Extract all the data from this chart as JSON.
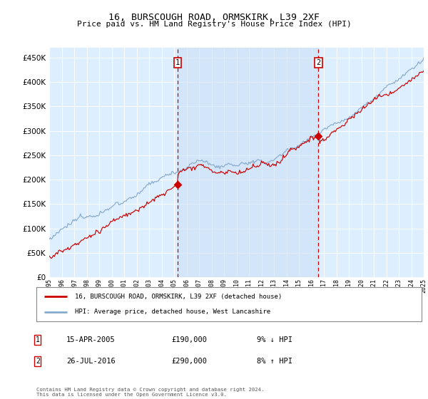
{
  "title": "16, BURSCOUGH ROAD, ORMSKIRK, L39 2XF",
  "subtitle": "Price paid vs. HM Land Registry's House Price Index (HPI)",
  "legend_line1": "16, BURSCOUGH ROAD, ORMSKIRK, L39 2XF (detached house)",
  "legend_line2": "HPI: Average price, detached house, West Lancashire",
  "footnote": "Contains HM Land Registry data © Crown copyright and database right 2024.\nThis data is licensed under the Open Government Licence v3.0.",
  "sale1_date": "15-APR-2005",
  "sale1_price": "£190,000",
  "sale1_hpi": "9% ↓ HPI",
  "sale2_date": "26-JUL-2016",
  "sale2_price": "£290,000",
  "sale2_hpi": "8% ↑ HPI",
  "red_color": "#cc0000",
  "blue_color": "#88aacc",
  "bg_color": "#ddeeff",
  "shade_color": "#cce0f5",
  "vline_color": "#cc0000",
  "ylim": [
    0,
    470000
  ],
  "yticks": [
    0,
    50000,
    100000,
    150000,
    200000,
    250000,
    300000,
    350000,
    400000,
    450000
  ],
  "sale1_x": 2005.29,
  "sale1_y": 190000,
  "sale2_x": 2016.57,
  "sale2_y": 290000,
  "xmin": 1995,
  "xmax": 2025
}
